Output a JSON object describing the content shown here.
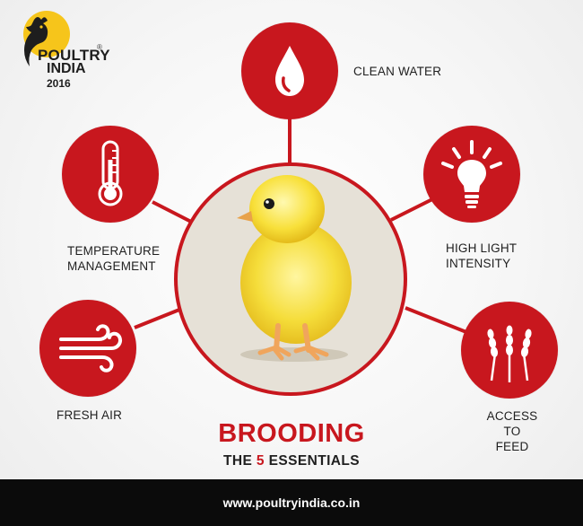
{
  "logo": {
    "line1": "POULTRY",
    "line2": "INDIA",
    "year": "2016",
    "mark": "®"
  },
  "essentials": {
    "water": {
      "label": "CLEAN WATER",
      "icon": "water-drop-icon"
    },
    "temperature": {
      "label_line1": "TEMPERATURE",
      "label_line2": "MANAGEMENT",
      "icon": "thermometer-icon"
    },
    "light": {
      "label_line1": "HIGH LIGHT",
      "label_line2": "INTENSITY",
      "icon": "light-bulb-icon"
    },
    "air": {
      "label": "FRESH AIR",
      "icon": "wind-icon"
    },
    "feed": {
      "label_line1": "ACCESS TO",
      "label_line2": "FEED",
      "icon": "wheat-icon"
    }
  },
  "title": "BROODING",
  "subtitle": {
    "prefix": "THE",
    "number": "5",
    "suffix": "ESSENTIALS"
  },
  "footer": {
    "url": "www.poultryindia.co.in"
  },
  "colors": {
    "accent": "#c8171e",
    "footer_bg": "#0b0b0b"
  }
}
